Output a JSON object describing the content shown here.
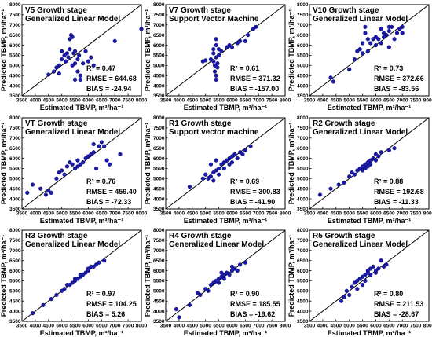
{
  "figure": {
    "xlabel": "Estimated TBMP, m³/ha⁻¹",
    "ylabel": "Predicted TBMP, m³/ha⁻¹"
  },
  "chart_data": [
    {
      "type": "scatter",
      "title": "V5 Growth stage",
      "subtitle": "Generalized Linear Model",
      "stats": {
        "r2": "R² = 0.47",
        "rmse": "RMSE = 644.68",
        "bias": "BIAS = -24.94"
      },
      "xlim": [
        3500,
        8000
      ],
      "ylim": [
        3500,
        8000
      ],
      "xticks": [
        "3500",
        "4000",
        "4500",
        "5000",
        "5500",
        "6000",
        "6500",
        "7000",
        "7500",
        "8000"
      ],
      "yticks": [
        "3500",
        "4000",
        "4500",
        "5000",
        "5500",
        "6000",
        "6500",
        "7000",
        "7500",
        "8000"
      ],
      "marker_color": "#1a1aa6",
      "points": [
        [
          4500,
          4550
        ],
        [
          4700,
          4700
        ],
        [
          4800,
          4900
        ],
        [
          4900,
          5000
        ],
        [
          5000,
          5300
        ],
        [
          5000,
          5700
        ],
        [
          5100,
          5500
        ],
        [
          5150,
          5200
        ],
        [
          5200,
          5600
        ],
        [
          5250,
          5400
        ],
        [
          5300,
          5800
        ],
        [
          5300,
          6300
        ],
        [
          5350,
          6500
        ],
        [
          5400,
          6400
        ],
        [
          5400,
          5000
        ],
        [
          5450,
          5600
        ],
        [
          5500,
          5700
        ],
        [
          5500,
          5100
        ],
        [
          5600,
          5300
        ],
        [
          5600,
          4700
        ],
        [
          5650,
          5500
        ],
        [
          5700,
          4500
        ],
        [
          5800,
          5100
        ],
        [
          5900,
          5700
        ],
        [
          6000,
          5200
        ],
        [
          6100,
          5400
        ],
        [
          6200,
          5000
        ],
        [
          5500,
          4300
        ],
        [
          5700,
          4300
        ],
        [
          4900,
          4600
        ],
        [
          7000,
          6200
        ],
        [
          8000,
          6800
        ]
      ]
    },
    {
      "type": "scatter",
      "title": "V7 Growth stage",
      "subtitle": "Support Vector Machine",
      "stats": {
        "r2": "R² = 0.61",
        "rmse": "RMSE = 371.32",
        "bias": "BIAS = -157.00"
      },
      "xlim": [
        3500,
        8000
      ],
      "ylim": [
        3500,
        8000
      ],
      "xticks": [
        "3500",
        "4000",
        "4500",
        "5000",
        "5500",
        "6000",
        "6500",
        "7000",
        "7500",
        "8000"
      ],
      "yticks": [
        "3500",
        "4000",
        "4500",
        "5000",
        "5500",
        "6000",
        "6500",
        "7000",
        "7500",
        "8000"
      ],
      "marker_color": "#1a1aa6",
      "points": [
        [
          4900,
          5200
        ],
        [
          5000,
          5250
        ],
        [
          5200,
          5300
        ],
        [
          5300,
          5200
        ],
        [
          5300,
          5600
        ],
        [
          5300,
          5800
        ],
        [
          5350,
          5000
        ],
        [
          5350,
          4700
        ],
        [
          5400,
          6300
        ],
        [
          5400,
          6000
        ],
        [
          5400,
          5400
        ],
        [
          5400,
          4500
        ],
        [
          5400,
          4300
        ],
        [
          5450,
          5100
        ],
        [
          5450,
          4900
        ],
        [
          5500,
          5500
        ],
        [
          5500,
          5800
        ],
        [
          5600,
          5700
        ],
        [
          5800,
          5900
        ],
        [
          5900,
          6000
        ],
        [
          6000,
          5900
        ],
        [
          6200,
          6100
        ],
        [
          6300,
          6200
        ],
        [
          6500,
          6200
        ],
        [
          6600,
          6500
        ],
        [
          6800,
          6800
        ],
        [
          6900,
          6900
        ]
      ]
    },
    {
      "type": "scatter",
      "title": "V10 Growth stage",
      "subtitle": "Generalized Linear Model",
      "stats": {
        "r2": "R² = 0.73",
        "rmse": "RMSE = 372.66",
        "bias": "BIAS = -83.56"
      },
      "xlim": [
        3500,
        8000
      ],
      "ylim": [
        3500,
        8000
      ],
      "xticks": [
        "3500",
        "4000",
        "4500",
        "5000",
        "5500",
        "6000",
        "6500",
        "7000",
        "7500",
        "8000"
      ],
      "yticks": [
        "3500",
        "4000",
        "4500",
        "5000",
        "5500",
        "6000",
        "6500",
        "7000",
        "7500",
        "8000"
      ],
      "marker_color": "#1a1aa6",
      "points": [
        [
          4300,
          4400
        ],
        [
          4400,
          4200
        ],
        [
          5000,
          4800
        ],
        [
          5200,
          5300
        ],
        [
          5300,
          5700
        ],
        [
          5400,
          5800
        ],
        [
          5500,
          5600
        ],
        [
          5500,
          6100
        ],
        [
          5600,
          6600
        ],
        [
          5600,
          6900
        ],
        [
          5700,
          6300
        ],
        [
          5700,
          5700
        ],
        [
          5800,
          6100
        ],
        [
          5900,
          6300
        ],
        [
          6000,
          6000
        ],
        [
          6000,
          6400
        ],
        [
          6100,
          6300
        ],
        [
          6200,
          6800
        ],
        [
          6200,
          6100
        ],
        [
          6300,
          6600
        ],
        [
          6300,
          6400
        ],
        [
          6400,
          6500
        ],
        [
          6500,
          6700
        ],
        [
          6500,
          6900
        ],
        [
          6600,
          6900
        ],
        [
          6700,
          6300
        ],
        [
          6800,
          6600
        ],
        [
          6900,
          6800
        ],
        [
          7000,
          6900
        ],
        [
          7000,
          6600
        ],
        [
          6500,
          5900
        ]
      ]
    },
    {
      "type": "scatter",
      "title": "VT Growth stage",
      "subtitle": "Generalized Linear Model",
      "stats": {
        "r2": "R² = 0.76",
        "rmse": "RMSE = 459.40",
        "bias": "BIAS = -72.33"
      },
      "xlim": [
        3500,
        8000
      ],
      "ylim": [
        3500,
        8000
      ],
      "xticks": [
        "3500",
        "4000",
        "4500",
        "5000",
        "5500",
        "6000",
        "6500",
        "7000",
        "7500",
        "8000"
      ],
      "yticks": [
        "3500",
        "4000",
        "4500",
        "5000",
        "5500",
        "6000",
        "6500",
        "7000",
        "7500",
        "8000"
      ],
      "marker_color": "#1a1aa6",
      "points": [
        [
          3700,
          4300
        ],
        [
          3900,
          4700
        ],
        [
          4200,
          4500
        ],
        [
          4400,
          4200
        ],
        [
          4500,
          4400
        ],
        [
          4800,
          5000
        ],
        [
          4900,
          5300
        ],
        [
          5000,
          5400
        ],
        [
          5100,
          5200
        ],
        [
          5200,
          5600
        ],
        [
          5300,
          5800
        ],
        [
          5400,
          5700
        ],
        [
          5500,
          5500
        ],
        [
          5600,
          5600
        ],
        [
          5600,
          5900
        ],
        [
          5700,
          5700
        ],
        [
          5800,
          5800
        ],
        [
          5900,
          6000
        ],
        [
          6000,
          6100
        ],
        [
          6100,
          6200
        ],
        [
          6200,
          6300
        ],
        [
          6300,
          5500
        ],
        [
          6400,
          6600
        ],
        [
          6500,
          6800
        ],
        [
          6600,
          6600
        ],
        [
          6700,
          5900
        ],
        [
          6800,
          5700
        ],
        [
          7200,
          6200
        ],
        [
          6200,
          6700
        ],
        [
          4600,
          4300
        ]
      ]
    },
    {
      "type": "scatter",
      "title": "R1 Growth stage",
      "subtitle": "Support vector machine",
      "stats": {
        "r2": "R² = 0.69",
        "rmse": "RMSE = 300.83",
        "bias": "BIAS = -41.90"
      },
      "xlim": [
        3500,
        8000
      ],
      "ylim": [
        3500,
        8000
      ],
      "xticks": [
        "3500",
        "4000",
        "4500",
        "5000",
        "5500",
        "6000",
        "6500",
        "7000",
        "7500",
        "8000"
      ],
      "yticks": [
        "3500",
        "4000",
        "4500",
        "5000",
        "5500",
        "6000",
        "6500",
        "7000",
        "7500",
        "8000"
      ],
      "marker_color": "#1a1aa6",
      "points": [
        [
          4400,
          4600
        ],
        [
          4900,
          5000
        ],
        [
          5000,
          5200
        ],
        [
          5100,
          5000
        ],
        [
          5200,
          5100
        ],
        [
          5300,
          5300
        ],
        [
          5400,
          5400
        ],
        [
          5500,
          5500
        ],
        [
          5500,
          5200
        ],
        [
          5600,
          5700
        ],
        [
          5700,
          5500
        ],
        [
          5700,
          5800
        ],
        [
          5800,
          5900
        ],
        [
          5900,
          5700
        ],
        [
          5900,
          6000
        ],
        [
          6000,
          6100
        ],
        [
          6000,
          5800
        ],
        [
          6100,
          6200
        ],
        [
          6200,
          6000
        ],
        [
          6300,
          6300
        ],
        [
          6400,
          6200
        ],
        [
          6500,
          6400
        ],
        [
          6700,
          6600
        ],
        [
          5200,
          5700
        ],
        [
          5400,
          5900
        ],
        [
          5300,
          4900
        ]
      ]
    },
    {
      "type": "scatter",
      "title": "R2 Growth stage",
      "subtitle": "Generalized Linear Model",
      "stats": {
        "r2": "R² = 0.88",
        "rmse": "RMSE = 192.68",
        "bias": "BIAS = -11.33"
      },
      "xlim": [
        3500,
        8000
      ],
      "ylim": [
        3500,
        8000
      ],
      "xticks": [
        "3500",
        "4000",
        "4500",
        "5000",
        "5500",
        "6000",
        "6500",
        "7000",
        "7500",
        "8000"
      ],
      "yticks": [
        "3500",
        "4000",
        "4500",
        "5000",
        "5500",
        "6000",
        "6500",
        "7000",
        "7500",
        "8000"
      ],
      "marker_color": "#1a1aa6",
      "points": [
        [
          3900,
          4200
        ],
        [
          4300,
          4500
        ],
        [
          4600,
          4700
        ],
        [
          4800,
          4800
        ],
        [
          5000,
          5100
        ],
        [
          5100,
          5300
        ],
        [
          5200,
          5200
        ],
        [
          5300,
          5400
        ],
        [
          5400,
          5500
        ],
        [
          5500,
          5600
        ],
        [
          5500,
          5400
        ],
        [
          5600,
          5700
        ],
        [
          5700,
          5800
        ],
        [
          5700,
          5600
        ],
        [
          5800,
          5900
        ],
        [
          5900,
          6000
        ],
        [
          6000,
          5900
        ],
        [
          6000,
          6200
        ],
        [
          6100,
          6100
        ],
        [
          6200,
          6300
        ],
        [
          6500,
          6400
        ],
        [
          6700,
          6500
        ],
        [
          5600,
          5500
        ],
        [
          5800,
          5700
        ]
      ]
    },
    {
      "type": "scatter",
      "title": "R3 Growth stage",
      "subtitle": "Generalized Linear Model",
      "stats": {
        "r2": "R² = 0.97",
        "rmse": "RMSE = 104.25",
        "bias": "BIAS = 5.26"
      },
      "xlim": [
        3500,
        8000
      ],
      "ylim": [
        3500,
        8000
      ],
      "xticks": [
        "3500",
        "4000",
        "4500",
        "5000",
        "5500",
        "6000",
        "6500",
        "7000",
        "7500",
        "8000"
      ],
      "yticks": [
        "3500",
        "4000",
        "4500",
        "5000",
        "5500",
        "6000",
        "6500",
        "7000",
        "7500",
        "8000"
      ],
      "marker_color": "#1a1aa6",
      "points": [
        [
          3900,
          3900
        ],
        [
          4300,
          4300
        ],
        [
          4600,
          4600
        ],
        [
          4800,
          4800
        ],
        [
          5000,
          5000
        ],
        [
          5100,
          5100
        ],
        [
          5200,
          5300
        ],
        [
          5300,
          5300
        ],
        [
          5400,
          5400
        ],
        [
          5500,
          5500
        ],
        [
          5500,
          5600
        ],
        [
          5600,
          5600
        ],
        [
          5700,
          5700
        ],
        [
          5700,
          5800
        ],
        [
          5800,
          5800
        ],
        [
          5900,
          5900
        ],
        [
          6000,
          6000
        ],
        [
          6000,
          6100
        ],
        [
          6100,
          6200
        ],
        [
          6200,
          6200
        ],
        [
          6300,
          6300
        ],
        [
          6400,
          6400
        ],
        [
          6600,
          6500
        ]
      ]
    },
    {
      "type": "scatter",
      "title": "R4 Growth stage",
      "subtitle": "Generalized Linear Model",
      "stats": {
        "r2": "R² = 0.90",
        "rmse": "RMSE = 185.55",
        "bias": "BIAS = -19.62"
      },
      "xlim": [
        3500,
        8000
      ],
      "ylim": [
        3500,
        8000
      ],
      "xticks": [
        "3500",
        "4000",
        "4500",
        "5000",
        "5500",
        "6000",
        "6500",
        "7000",
        "7500",
        "8000"
      ],
      "yticks": [
        "3500",
        "4000",
        "4500",
        "5000",
        "5500",
        "6000",
        "6500",
        "7000",
        "7500",
        "8000"
      ],
      "marker_color": "#1a1aa6",
      "points": [
        [
          3900,
          4100
        ],
        [
          4000,
          3700
        ],
        [
          4400,
          4300
        ],
        [
          4700,
          4900
        ],
        [
          4800,
          4800
        ],
        [
          5000,
          5100
        ],
        [
          5100,
          5000
        ],
        [
          5200,
          5300
        ],
        [
          5300,
          5400
        ],
        [
          5400,
          5500
        ],
        [
          5500,
          5400
        ],
        [
          5500,
          5600
        ],
        [
          5600,
          5700
        ],
        [
          5700,
          5600
        ],
        [
          5700,
          5800
        ],
        [
          5800,
          5900
        ],
        [
          5900,
          5800
        ],
        [
          6000,
          6000
        ],
        [
          6000,
          6200
        ],
        [
          6100,
          6100
        ],
        [
          6200,
          6000
        ],
        [
          6300,
          6300
        ],
        [
          6500,
          6400
        ],
        [
          5600,
          5900
        ]
      ]
    },
    {
      "type": "scatter",
      "title": "R5 Growth stage",
      "subtitle": "Generalized Linear Model",
      "stats": {
        "r2": "R² = 0.80",
        "rmse": "RMSE = 211.53",
        "bias": "BIAS = -28.67"
      },
      "xlim": [
        3500,
        8000
      ],
      "ylim": [
        3500,
        8000
      ],
      "xticks": [
        "3500",
        "4000",
        "4500",
        "5000",
        "5500",
        "6000",
        "6500",
        "7000",
        "7500",
        "8000"
      ],
      "yticks": [
        "3500",
        "4000",
        "4500",
        "5000",
        "5500",
        "6000",
        "6500",
        "7000",
        "7500",
        "8000"
      ],
      "marker_color": "#1a1aa6",
      "points": [
        [
          4700,
          4500
        ],
        [
          4800,
          4700
        ],
        [
          4900,
          5000
        ],
        [
          5000,
          4800
        ],
        [
          5100,
          5200
        ],
        [
          5200,
          5400
        ],
        [
          5300,
          5100
        ],
        [
          5300,
          5500
        ],
        [
          5400,
          5600
        ],
        [
          5500,
          5700
        ],
        [
          5500,
          5300
        ],
        [
          5600,
          5800
        ],
        [
          5700,
          5900
        ],
        [
          5700,
          6000
        ],
        [
          5800,
          5800
        ],
        [
          5800,
          6100
        ],
        [
          5900,
          6200
        ],
        [
          6000,
          6000
        ],
        [
          6000,
          5900
        ],
        [
          6100,
          6100
        ],
        [
          6200,
          6500
        ],
        [
          6300,
          6200
        ],
        [
          6400,
          6300
        ],
        [
          5600,
          5500
        ]
      ]
    }
  ]
}
